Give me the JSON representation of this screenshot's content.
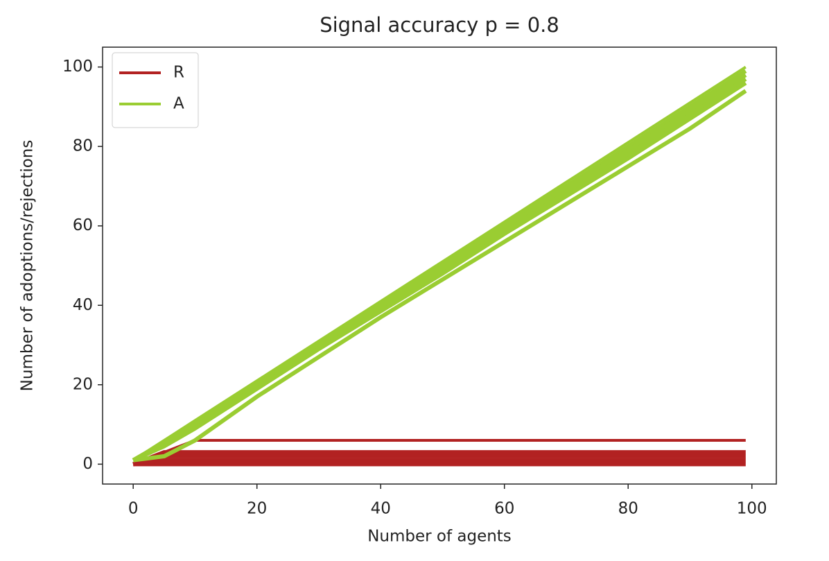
{
  "chart_data": {
    "type": "line",
    "title": "Signal accuracy p =  0.8",
    "x_label": "Number of agents",
    "y_label": "Number of adoptions/rejections",
    "x": [
      0,
      5,
      10,
      20,
      30,
      40,
      50,
      60,
      70,
      80,
      90,
      99
    ],
    "series": [
      {
        "name": "R",
        "color": "#b22222",
        "values": [
          0,
          3,
          6,
          6,
          6,
          6,
          6,
          6,
          6,
          6,
          6,
          6
        ]
      },
      {
        "color": "#b22222",
        "values": [
          0,
          0,
          0,
          0,
          0,
          0,
          0,
          0,
          0,
          0,
          0,
          0
        ]
      },
      {
        "color": "#b22222",
        "values": [
          0,
          1,
          1,
          1,
          1,
          1,
          1,
          1,
          1,
          1,
          1,
          1
        ]
      },
      {
        "color": "#b22222",
        "values": [
          0,
          2,
          2,
          2,
          2,
          2,
          2,
          2,
          2,
          2,
          2,
          2
        ]
      },
      {
        "color": "#b22222",
        "values": [
          0,
          3,
          3,
          3,
          3,
          3,
          3,
          3,
          3,
          3,
          3,
          3
        ]
      },
      {
        "name": "A",
        "color": "#9acd32",
        "values": [
          1,
          6,
          11,
          21,
          31,
          41,
          51,
          61,
          71,
          81,
          91,
          100
        ]
      },
      {
        "color": "#9acd32",
        "values": [
          1,
          5.5,
          10.5,
          20.5,
          30.5,
          40.5,
          50.5,
          60.5,
          70,
          80,
          90,
          99
        ]
      },
      {
        "color": "#9acd32",
        "values": [
          1,
          5,
          10,
          20,
          30,
          40,
          50,
          59.5,
          69.5,
          79,
          89,
          98
        ]
      },
      {
        "color": "#9acd32",
        "values": [
          1,
          5,
          9.5,
          19.5,
          29.5,
          39,
          49,
          58.5,
          68.5,
          78,
          88,
          97
        ]
      },
      {
        "color": "#9acd32",
        "values": [
          1,
          4.5,
          9,
          19,
          29,
          38.5,
          48,
          58,
          67.5,
          77,
          87,
          96
        ]
      },
      {
        "color": "#9acd32",
        "values": [
          1,
          2,
          6,
          17,
          27,
          37,
          46.5,
          56,
          65.5,
          75,
          84.5,
          94
        ]
      }
    ],
    "xlim": [
      -4.95,
      103.95
    ],
    "ylim": [
      -5,
      105
    ],
    "xticks": [
      0,
      20,
      40,
      60,
      80,
      100
    ],
    "yticks": [
      0,
      20,
      40,
      60,
      80,
      100
    ],
    "legend": "upper left"
  }
}
